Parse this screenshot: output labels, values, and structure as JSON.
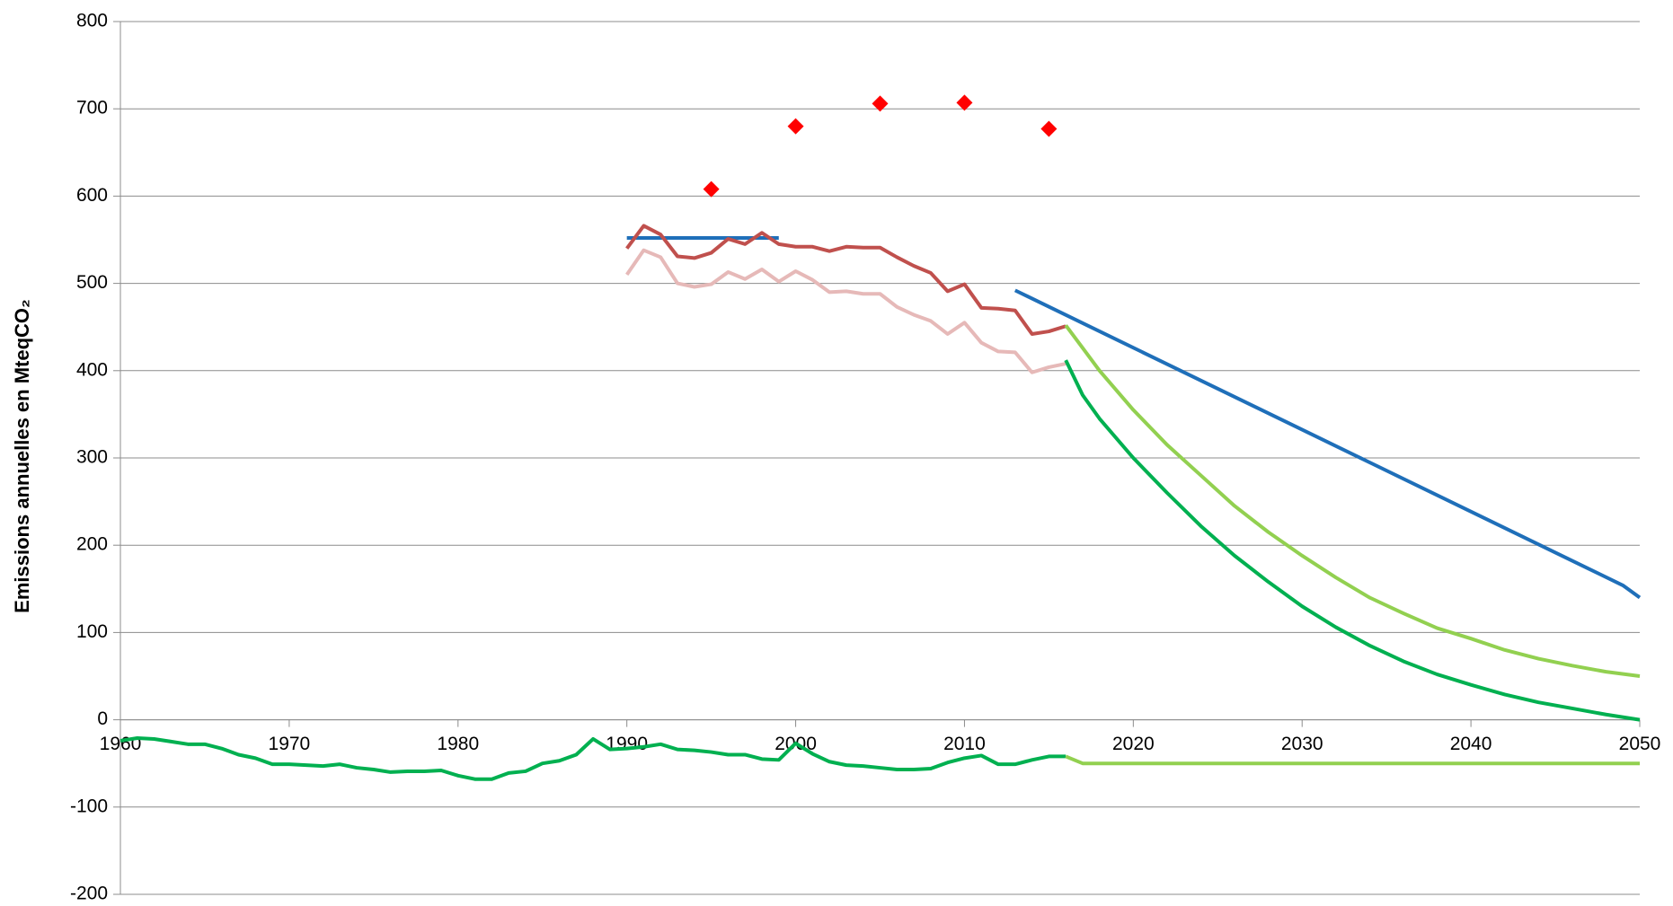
{
  "chart_data": {
    "type": "line",
    "y_label": "Emissions annuelles en MteqCO₂",
    "xlim": [
      1960,
      2050
    ],
    "xticks": [
      1960,
      1970,
      1980,
      1990,
      2000,
      2010,
      2020,
      2030,
      2040,
      2050
    ],
    "ylim": [
      -200,
      800
    ],
    "yticks": [
      -200,
      -100,
      0,
      100,
      200,
      300,
      400,
      500,
      600,
      700,
      800
    ],
    "grid": true,
    "series": [
      {
        "type": "line",
        "color": "#1f6fb9",
        "x": [
          1990,
          1999
        ],
        "values": [
          552,
          552
        ]
      },
      {
        "type": "line",
        "color": "#c0504d",
        "x": [
          1990,
          1991,
          1992,
          1993,
          1994,
          1995,
          1996,
          1997,
          1998,
          1999,
          2000,
          2001,
          2002,
          2003,
          2004,
          2005,
          2006,
          2007,
          2008,
          2009,
          2010,
          2011,
          2012,
          2013,
          2014,
          2015,
          2016
        ],
        "values": [
          540,
          566,
          556,
          531,
          529,
          535,
          551,
          545,
          558,
          545,
          542,
          542,
          537,
          542,
          541,
          541,
          530,
          520,
          512,
          491,
          499,
          472,
          471,
          469,
          442,
          445,
          451
        ]
      },
      {
        "type": "line",
        "color": "#e6b9b8",
        "x": [
          1990,
          1991,
          1992,
          1993,
          1994,
          1995,
          1996,
          1997,
          1998,
          1999,
          2000,
          2001,
          2002,
          2003,
          2004,
          2005,
          2006,
          2007,
          2008,
          2009,
          2010,
          2011,
          2012,
          2013,
          2014,
          2015,
          2016
        ],
        "values": [
          510,
          538,
          530,
          500,
          496,
          499,
          513,
          505,
          516,
          502,
          514,
          504,
          490,
          491,
          488,
          488,
          473,
          464,
          457,
          442,
          455,
          432,
          422,
          421,
          398,
          404,
          408
        ]
      },
      {
        "type": "line",
        "color": "#1f6fb9",
        "x": [
          2013,
          2049,
          2050
        ],
        "values": [
          492,
          154,
          140
        ]
      },
      {
        "type": "line",
        "color": "#92d050",
        "x": [
          2016,
          2018,
          2020,
          2022,
          2024,
          2026,
          2028,
          2030,
          2032,
          2034,
          2036,
          2038,
          2040,
          2042,
          2044,
          2046,
          2048,
          2050
        ],
        "values": [
          452,
          400,
          355,
          315,
          280,
          245,
          215,
          188,
          163,
          140,
          122,
          105,
          93,
          80,
          70,
          62,
          55,
          50
        ]
      },
      {
        "type": "line",
        "color": "#00b050",
        "x": [
          2016,
          2017,
          2018,
          2020,
          2022,
          2024,
          2026,
          2028,
          2030,
          2032,
          2034,
          2036,
          2038,
          2040,
          2042,
          2044,
          2046,
          2048,
          2050
        ],
        "values": [
          412,
          372,
          345,
          300,
          260,
          222,
          188,
          158,
          130,
          106,
          85,
          67,
          52,
          40,
          29,
          20,
          13,
          6,
          0
        ]
      },
      {
        "type": "line",
        "color": "#00b050",
        "x": [
          1960,
          1961,
          1962,
          1963,
          1964,
          1965,
          1966,
          1967,
          1968,
          1969,
          1970,
          1971,
          1972,
          1973,
          1974,
          1975,
          1976,
          1977,
          1978,
          1979,
          1980,
          1981,
          1982,
          1983,
          1984,
          1985,
          1986,
          1987,
          1988,
          1989,
          1990,
          1991,
          1992,
          1993,
          1994,
          1995,
          1996,
          1997,
          1998,
          1999,
          2000,
          2001,
          2002,
          2003,
          2004,
          2005,
          2006,
          2007,
          2008,
          2009,
          2010,
          2011,
          2012,
          2013,
          2014,
          2015,
          2016
        ],
        "values": [
          -24,
          -21,
          -22,
          -25,
          -28,
          -28,
          -33,
          -40,
          -44,
          -51,
          -51,
          -52,
          -53,
          -51,
          -55,
          -57,
          -60,
          -59,
          -59,
          -58,
          -64,
          -68,
          -68,
          -61,
          -59,
          -50,
          -47,
          -40,
          -22,
          -34,
          -33,
          -31,
          -28,
          -34,
          -35,
          -37,
          -40,
          -40,
          -45,
          -46,
          -27,
          -39,
          -48,
          -52,
          -53,
          -55,
          -57,
          -57,
          -56,
          -49,
          -44,
          -41,
          -51,
          -51,
          -46,
          -42,
          -42
        ]
      },
      {
        "type": "line",
        "color": "#92d050",
        "x": [
          2016,
          2017,
          2050
        ],
        "values": [
          -42,
          -50,
          -50
        ]
      },
      {
        "type": "scatter",
        "color": "#ff0000",
        "x": [
          1995,
          2000,
          2005,
          2010,
          2015
        ],
        "values": [
          608,
          680,
          706,
          707,
          677
        ]
      }
    ]
  }
}
